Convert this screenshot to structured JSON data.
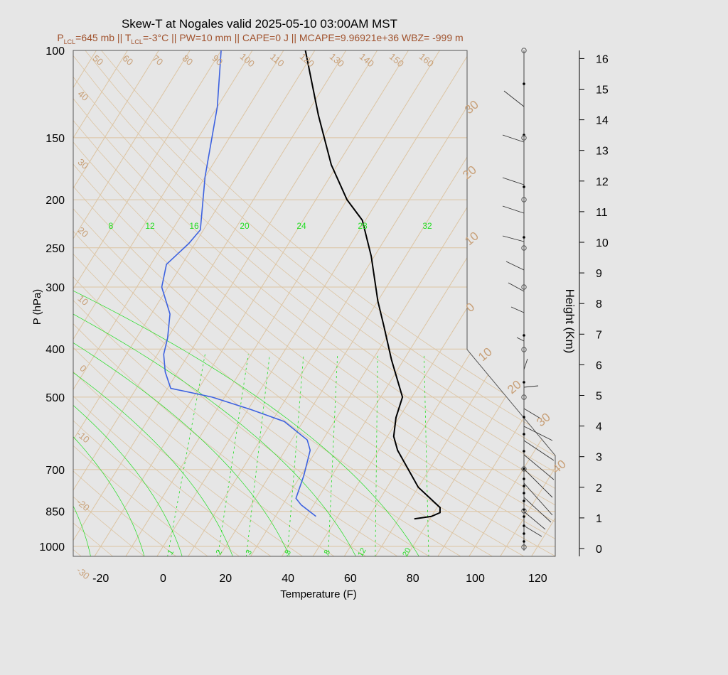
{
  "title": "Skew-T at Nogales valid 2025-05-10 03:00AM MST",
  "subtitle": {
    "p_lcl_label": "P",
    "p_lcl_sub": "LCL",
    "p_lcl_value": "=645 mb",
    "sep1": " || ",
    "t_lcl_label": "T",
    "t_lcl_sub": "LCL",
    "t_lcl_value": "=-3°C",
    "rest": " || PW=10 mm || CAPE=0 J || MCAPE=9.96921e+36 WBZ= -999 m"
  },
  "colors": {
    "background": "#e6e6e6",
    "isotherm": "#dcc4a2",
    "isobar": "#dcc4a2",
    "mixing_ratio": "#22dd22",
    "temperature": "#000000",
    "dewpoint": "#3d62e0"
  },
  "chart_data": {
    "type": "line",
    "xlabel": "Temperature (F)",
    "ylabel": "P (hPa)",
    "y2label": "Height (Km)",
    "x_ticks": [
      "-20",
      "0",
      "20",
      "40",
      "60",
      "80",
      "100",
      "120"
    ],
    "p_ticks": [
      "100",
      "150",
      "200",
      "250",
      "300",
      "400",
      "500",
      "700",
      "850",
      "1000"
    ],
    "height_ticks": [
      "0",
      "1",
      "2",
      "3",
      "4",
      "5",
      "6",
      "7",
      "8",
      "9",
      "10",
      "11",
      "12",
      "13",
      "14",
      "15",
      "16"
    ],
    "isotherm_labels_top": [
      "50",
      "60",
      "70",
      "80",
      "90",
      "100",
      "110",
      "120",
      "130",
      "140",
      "150",
      "160"
    ],
    "isotherm_labels_left": [
      "40",
      "30",
      "20",
      "10",
      "0",
      "-10",
      "-20",
      "-30"
    ],
    "isotherm_labels_right": [
      "30",
      "20",
      "10",
      "0",
      "10",
      "20",
      "30",
      "40"
    ],
    "mixing_ratio_labels_top": [
      "8",
      "12",
      "16",
      "20",
      "24",
      "28",
      "32"
    ],
    "mixing_ratio_labels_bottom": [
      "1",
      "2",
      "3",
      "5",
      "8",
      "12",
      "20"
    ],
    "series": [
      {
        "name": "",
        "kind": "temperature",
        "points": [
          {
            "t": 75,
            "p": 880
          },
          {
            "t": 80,
            "p": 870
          },
          {
            "t": 82,
            "p": 855
          },
          {
            "t": 81,
            "p": 835
          },
          {
            "t": 70,
            "p": 760
          },
          {
            "t": 56,
            "p": 640
          },
          {
            "t": 52,
            "p": 600
          },
          {
            "t": 49,
            "p": 550
          },
          {
            "t": 47,
            "p": 500
          },
          {
            "t": 36,
            "p": 420
          },
          {
            "t": 27,
            "p": 360
          },
          {
            "t": 20,
            "p": 320
          },
          {
            "t": 9,
            "p": 260
          },
          {
            "t": -1,
            "p": 220
          },
          {
            "t": -10,
            "p": 200
          },
          {
            "t": -22,
            "p": 170
          },
          {
            "t": -36,
            "p": 135
          },
          {
            "t": -53,
            "p": 100
          }
        ]
      },
      {
        "name": "",
        "kind": "dewpoint",
        "points": [
          {
            "t": 43,
            "p": 870
          },
          {
            "t": 36,
            "p": 825
          },
          {
            "t": 33,
            "p": 800
          },
          {
            "t": 31,
            "p": 720
          },
          {
            "t": 28,
            "p": 640
          },
          {
            "t": 25,
            "p": 610
          },
          {
            "t": 14,
            "p": 560
          },
          {
            "t": 1,
            "p": 530
          },
          {
            "t": -14,
            "p": 500
          },
          {
            "t": -29,
            "p": 480
          },
          {
            "t": -34,
            "p": 445
          },
          {
            "t": -38,
            "p": 410
          },
          {
            "t": -40,
            "p": 380
          },
          {
            "t": -44,
            "p": 340
          },
          {
            "t": -52,
            "p": 300
          },
          {
            "t": -55,
            "p": 270
          },
          {
            "t": -52,
            "p": 245
          },
          {
            "t": -51,
            "p": 230
          },
          {
            "t": -60,
            "p": 180
          },
          {
            "t": -70,
            "p": 130
          },
          {
            "t": -80,
            "p": 100
          }
        ]
      }
    ]
  }
}
